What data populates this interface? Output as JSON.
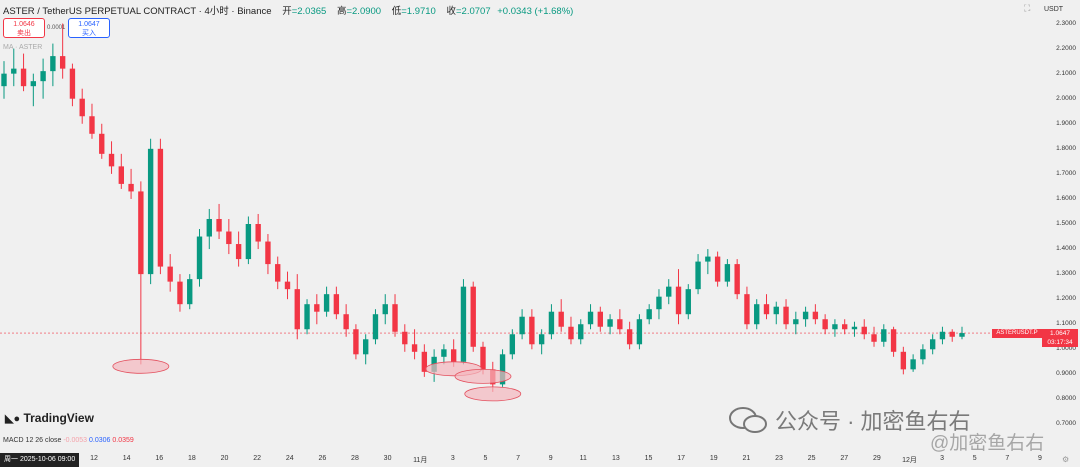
{
  "header": {
    "symbol": "ASTER / TetherUS PERPETUAL CONTRACT · 4小时 · Binance",
    "open_label": "开",
    "open": "=2.0365",
    "high_label": "高",
    "high": "=2.0900",
    "low_label": "低",
    "low": "=1.9710",
    "close_label": "收",
    "close": "=2.0707",
    "change": "+0.0343 (+1.68%)"
  },
  "trade": {
    "sell_price": "1.0646",
    "sell_label": "卖出",
    "spread": "0.0001",
    "buy_price": "1.0647",
    "buy_label": "买入"
  },
  "indicator_ma": "MA · ASTER",
  "currency": "USDT",
  "current": {
    "ticker": "ASTERUSDT.P",
    "price": "1.0647",
    "countdown": "03:17:34"
  },
  "yticks": [
    "2.3000",
    "2.2000",
    "2.1000",
    "2.0000",
    "1.9000",
    "1.8000",
    "1.7000",
    "1.6000",
    "1.5000",
    "1.4000",
    "1.3000",
    "1.2000",
    "1.1000",
    "1.0000",
    "0.9000",
    "0.8000",
    "0.7000"
  ],
  "xaxis": {
    "start": "周一 2025-10-06  09:00",
    "ticks": [
      "12",
      "14",
      "16",
      "18",
      "20",
      "22",
      "24",
      "26",
      "28",
      "30",
      "11月",
      "3",
      "5",
      "7",
      "9",
      "11",
      "13",
      "15",
      "17",
      "19",
      "21",
      "23",
      "25",
      "27",
      "29",
      "12月",
      "3",
      "5",
      "7",
      "9"
    ]
  },
  "brand": "TradingView",
  "macd": {
    "label": "MACD 12 26 close",
    "v1": "-0.0053",
    "v2": "0.0306",
    "v3": "0.0359"
  },
  "watermark": {
    "text1": "公众号 · 加密鱼右右",
    "text2": "@加密鱼右右"
  },
  "colors": {
    "up": "#089981",
    "down": "#f23645",
    "highlight": "#f4b6bd"
  },
  "chart_data": {
    "type": "candlestick",
    "interval": "4h",
    "ylim": [
      0.65,
      2.35
    ],
    "current_price": 1.0647,
    "highlighted_lows": [
      0.94,
      0.93,
      0.83,
      0.9
    ],
    "ohlc": [
      [
        2.05,
        2.15,
        2.0,
        2.1
      ],
      [
        2.1,
        2.2,
        2.05,
        2.12
      ],
      [
        2.12,
        2.18,
        2.03,
        2.05
      ],
      [
        2.05,
        2.1,
        1.97,
        2.07
      ],
      [
        2.07,
        2.16,
        2.0,
        2.11
      ],
      [
        2.11,
        2.22,
        2.05,
        2.17
      ],
      [
        2.17,
        2.3,
        2.08,
        2.12
      ],
      [
        2.12,
        2.14,
        1.97,
        2.0
      ],
      [
        2.0,
        2.04,
        1.9,
        1.93
      ],
      [
        1.93,
        1.98,
        1.84,
        1.86
      ],
      [
        1.86,
        1.9,
        1.76,
        1.78
      ],
      [
        1.78,
        1.83,
        1.7,
        1.73
      ],
      [
        1.73,
        1.78,
        1.64,
        1.66
      ],
      [
        1.66,
        1.72,
        1.6,
        1.63
      ],
      [
        1.63,
        1.67,
        0.94,
        1.3
      ],
      [
        1.3,
        1.84,
        1.26,
        1.8
      ],
      [
        1.8,
        1.84,
        1.3,
        1.33
      ],
      [
        1.33,
        1.38,
        1.23,
        1.27
      ],
      [
        1.27,
        1.3,
        1.15,
        1.18
      ],
      [
        1.18,
        1.3,
        1.16,
        1.28
      ],
      [
        1.28,
        1.48,
        1.25,
        1.45
      ],
      [
        1.45,
        1.56,
        1.4,
        1.52
      ],
      [
        1.52,
        1.58,
        1.44,
        1.47
      ],
      [
        1.47,
        1.52,
        1.38,
        1.42
      ],
      [
        1.42,
        1.47,
        1.33,
        1.36
      ],
      [
        1.36,
        1.53,
        1.34,
        1.5
      ],
      [
        1.5,
        1.54,
        1.4,
        1.43
      ],
      [
        1.43,
        1.46,
        1.3,
        1.34
      ],
      [
        1.34,
        1.37,
        1.24,
        1.27
      ],
      [
        1.27,
        1.31,
        1.2,
        1.24
      ],
      [
        1.24,
        1.3,
        1.04,
        1.08
      ],
      [
        1.08,
        1.2,
        1.06,
        1.18
      ],
      [
        1.18,
        1.22,
        1.1,
        1.15
      ],
      [
        1.15,
        1.25,
        1.13,
        1.22
      ],
      [
        1.22,
        1.25,
        1.12,
        1.14
      ],
      [
        1.14,
        1.18,
        1.05,
        1.08
      ],
      [
        1.08,
        1.1,
        0.96,
        0.98
      ],
      [
        0.98,
        1.06,
        0.94,
        1.04
      ],
      [
        1.04,
        1.16,
        1.02,
        1.14
      ],
      [
        1.14,
        1.22,
        1.1,
        1.18
      ],
      [
        1.18,
        1.22,
        1.05,
        1.07
      ],
      [
        1.07,
        1.1,
        0.99,
        1.02
      ],
      [
        1.02,
        1.08,
        0.96,
        0.99
      ],
      [
        0.99,
        1.02,
        0.89,
        0.91
      ],
      [
        0.91,
        1.0,
        0.87,
        0.97
      ],
      [
        0.97,
        1.02,
        0.94,
        1.0
      ],
      [
        1.0,
        1.04,
        0.93,
        0.95
      ],
      [
        0.95,
        1.28,
        0.94,
        1.25
      ],
      [
        1.25,
        1.27,
        0.99,
        1.01
      ],
      [
        1.01,
        1.03,
        0.9,
        0.92
      ],
      [
        0.92,
        0.95,
        0.83,
        0.86
      ],
      [
        0.86,
        1.0,
        0.85,
        0.98
      ],
      [
        0.98,
        1.08,
        0.96,
        1.06
      ],
      [
        1.06,
        1.16,
        1.04,
        1.13
      ],
      [
        1.13,
        1.16,
        1.0,
        1.02
      ],
      [
        1.02,
        1.08,
        0.98,
        1.06
      ],
      [
        1.06,
        1.18,
        1.04,
        1.15
      ],
      [
        1.15,
        1.2,
        1.07,
        1.09
      ],
      [
        1.09,
        1.13,
        1.02,
        1.04
      ],
      [
        1.04,
        1.12,
        1.02,
        1.1
      ],
      [
        1.1,
        1.18,
        1.08,
        1.15
      ],
      [
        1.15,
        1.17,
        1.07,
        1.09
      ],
      [
        1.09,
        1.14,
        1.06,
        1.12
      ],
      [
        1.12,
        1.16,
        1.06,
        1.08
      ],
      [
        1.08,
        1.11,
        1.0,
        1.02
      ],
      [
        1.02,
        1.14,
        1.0,
        1.12
      ],
      [
        1.12,
        1.18,
        1.1,
        1.16
      ],
      [
        1.16,
        1.24,
        1.12,
        1.21
      ],
      [
        1.21,
        1.28,
        1.18,
        1.25
      ],
      [
        1.25,
        1.32,
        1.1,
        1.14
      ],
      [
        1.14,
        1.26,
        1.12,
        1.24
      ],
      [
        1.24,
        1.38,
        1.22,
        1.35
      ],
      [
        1.35,
        1.4,
        1.3,
        1.37
      ],
      [
        1.37,
        1.39,
        1.25,
        1.27
      ],
      [
        1.27,
        1.36,
        1.25,
        1.34
      ],
      [
        1.34,
        1.36,
        1.2,
        1.22
      ],
      [
        1.22,
        1.25,
        1.08,
        1.1
      ],
      [
        1.1,
        1.2,
        1.08,
        1.18
      ],
      [
        1.18,
        1.22,
        1.12,
        1.14
      ],
      [
        1.14,
        1.19,
        1.1,
        1.17
      ],
      [
        1.17,
        1.2,
        1.08,
        1.1
      ],
      [
        1.1,
        1.15,
        1.06,
        1.12
      ],
      [
        1.12,
        1.17,
        1.09,
        1.15
      ],
      [
        1.15,
        1.18,
        1.1,
        1.12
      ],
      [
        1.12,
        1.14,
        1.06,
        1.08
      ],
      [
        1.08,
        1.12,
        1.05,
        1.1
      ],
      [
        1.1,
        1.12,
        1.06,
        1.08
      ],
      [
        1.08,
        1.11,
        1.05,
        1.09
      ],
      [
        1.09,
        1.12,
        1.04,
        1.06
      ],
      [
        1.06,
        1.09,
        1.01,
        1.03
      ],
      [
        1.03,
        1.1,
        1.01,
        1.08
      ],
      [
        1.08,
        1.09,
        0.97,
        0.99
      ],
      [
        0.99,
        1.01,
        0.9,
        0.92
      ],
      [
        0.92,
        0.98,
        0.91,
        0.96
      ],
      [
        0.96,
        1.02,
        0.94,
        1.0
      ],
      [
        1.0,
        1.06,
        0.98,
        1.04
      ],
      [
        1.04,
        1.09,
        1.02,
        1.07
      ],
      [
        1.07,
        1.08,
        1.03,
        1.05
      ],
      [
        1.05,
        1.09,
        1.04,
        1.0647
      ]
    ]
  }
}
